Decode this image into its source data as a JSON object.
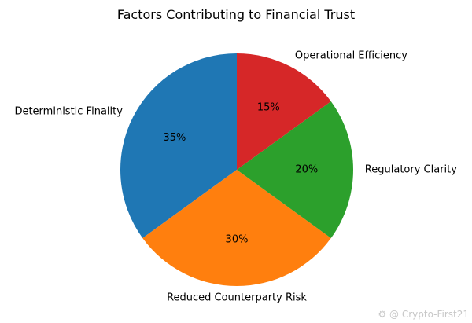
{
  "chart_data": {
    "type": "pie",
    "title": "Factors Contributing to Financial Trust",
    "categories": [
      "Deterministic Finality",
      "Reduced Counterparty Risk",
      "Regulatory Clarity",
      "Operational Efficiency"
    ],
    "values": [
      35,
      30,
      20,
      15
    ],
    "value_labels": [
      "35%",
      "30%",
      "20%",
      "15%"
    ],
    "colors": [
      "#1f77b4",
      "#ff7f0e",
      "#2ca02c",
      "#d62728"
    ],
    "start_angle_deg": 90,
    "direction": "counterclockwise",
    "legend": "none"
  },
  "watermark": {
    "text": "⚙ @ Crypto-First21"
  }
}
